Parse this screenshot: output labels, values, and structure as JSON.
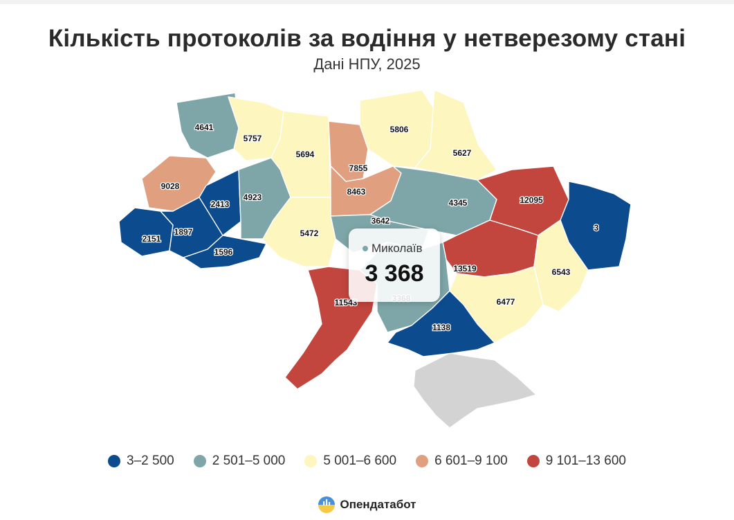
{
  "title": "Кількість протоколів за водіння у нетверезому стані",
  "subtitle": "Дані НПУ, 2025",
  "colors": {
    "bin1": "#0b4b8e",
    "bin2": "#7ea6a8",
    "bin3": "#fdf6bf",
    "bin4": "#e0a080",
    "bin5": "#c2453e",
    "crimea": "#d3d3d3"
  },
  "legend": [
    {
      "label": "3–2 500",
      "color": "#0b4b8e"
    },
    {
      "label": "2 501–5 000",
      "color": "#7ea6a8"
    },
    {
      "label": "5 001–6 600",
      "color": "#fdf6bf"
    },
    {
      "label": "6 601–9 100",
      "color": "#e0a080"
    },
    {
      "label": "9 101–13 600",
      "color": "#c2453e"
    }
  ],
  "tooltip": {
    "region": "Миколаїв",
    "value": "3 368"
  },
  "map_data": {
    "type": "choropleth",
    "unit": "протоколи",
    "regions": [
      {
        "id": "volyn",
        "value": 4641,
        "label": "4641"
      },
      {
        "id": "rivne",
        "value": 5757,
        "label": "5757"
      },
      {
        "id": "zhytomyr",
        "value": 5694,
        "label": "5694"
      },
      {
        "id": "kyiv-oblast",
        "value": 7855,
        "label": "7855"
      },
      {
        "id": "chernihiv",
        "value": 5806,
        "label": "5806"
      },
      {
        "id": "sumy",
        "value": 5627,
        "label": "5627"
      },
      {
        "id": "lviv",
        "value": 9028,
        "label": "9028"
      },
      {
        "id": "ternopil",
        "value": 2413,
        "label": "2413"
      },
      {
        "id": "khmelnytskyi",
        "value": 4923,
        "label": "4923"
      },
      {
        "id": "poltava",
        "value": 8463,
        "label": "8463"
      },
      {
        "id": "kharkiv-poltava-area",
        "value": 4345,
        "label": "4345"
      },
      {
        "id": "kharkiv",
        "value": 12095,
        "label": "12095"
      },
      {
        "id": "luhansk",
        "value": 3,
        "label": "3"
      },
      {
        "id": "zakarpattia",
        "value": 2151,
        "label": "2151"
      },
      {
        "id": "ivano-frankivsk",
        "value": 1897,
        "label": "1897"
      },
      {
        "id": "chernivtsi",
        "value": 1596,
        "label": "1596"
      },
      {
        "id": "vinnytsia",
        "value": 5472,
        "label": "5472"
      },
      {
        "id": "cherkasy-kirovohrad",
        "value": 3642,
        "label": "3642"
      },
      {
        "id": "dnipropetrovsk",
        "value": 13519,
        "label": "13519"
      },
      {
        "id": "donetsk",
        "value": 6543,
        "label": "6543"
      },
      {
        "id": "zaporizhzhia",
        "value": 6477,
        "label": "6477"
      },
      {
        "id": "odesa",
        "value": 11543,
        "label": "11543"
      },
      {
        "id": "mykolaiv",
        "value": 3368,
        "label": "3368"
      },
      {
        "id": "kherson",
        "value": 1138,
        "label": "1138"
      }
    ]
  },
  "brand": {
    "name": "Опендатабот",
    "logo_icon": "opendatabot-logo-icon"
  }
}
